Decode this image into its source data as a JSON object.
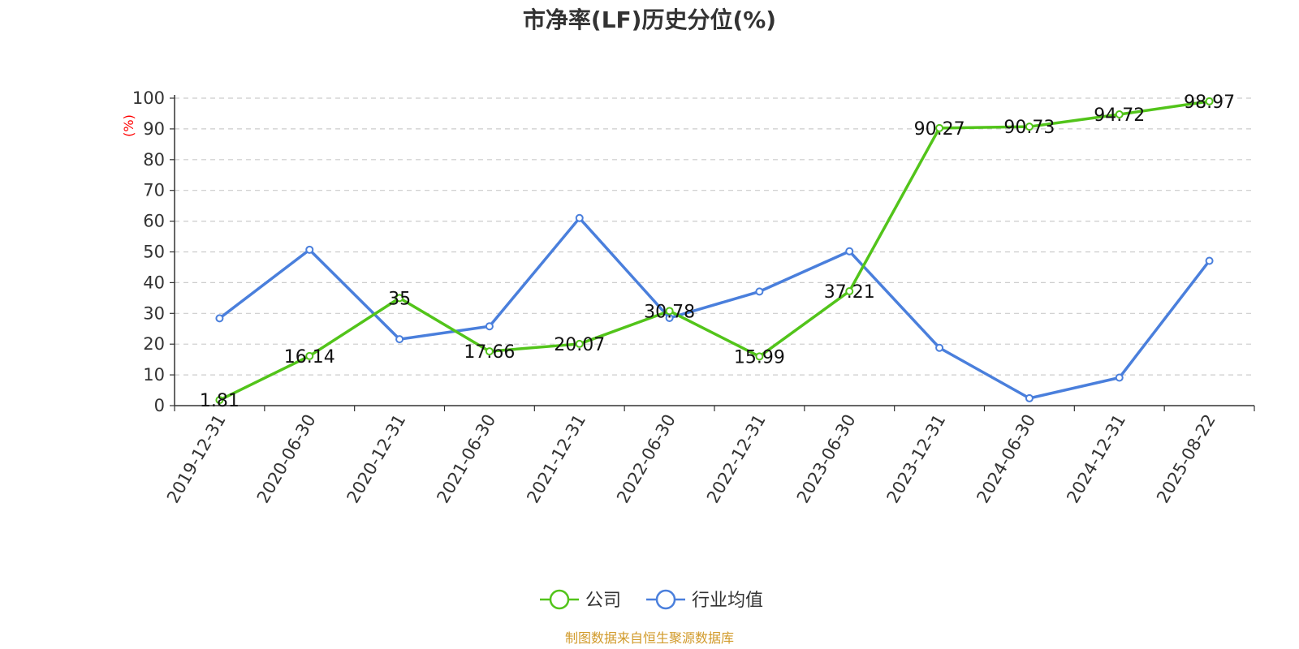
{
  "chart_data": {
    "type": "line",
    "title": "市净率(LF)历史分位(%)",
    "ylabel": "(%)",
    "ylim": [
      0,
      100
    ],
    "yticks": [
      0,
      10,
      20,
      30,
      40,
      50,
      60,
      70,
      80,
      90,
      100
    ],
    "grid": true,
    "legend_position": "bottom-center",
    "categories": [
      "2019-12-31",
      "2020-06-30",
      "2020-12-31",
      "2021-06-30",
      "2021-12-31",
      "2022-06-30",
      "2022-12-31",
      "2023-06-30",
      "2023-12-31",
      "2024-06-30",
      "2024-12-31",
      "2025-08-22"
    ],
    "series": [
      {
        "name": "公司",
        "color": "#52c41a",
        "values": [
          1.81,
          16.14,
          35,
          17.66,
          20.07,
          30.78,
          15.99,
          37.21,
          90.27,
          90.73,
          94.72,
          98.97
        ],
        "labels": [
          "1.81",
          "16.14",
          "35",
          "17.66",
          "20.07",
          "30.78",
          "15.99",
          "37.21",
          "90.27",
          "90.73",
          "94.72",
          "98.97"
        ]
      },
      {
        "name": "行业均值",
        "color": "#4a7fdc",
        "values": [
          28.4,
          50.7,
          21.6,
          25.8,
          61.0,
          28.5,
          37.1,
          50.2,
          18.8,
          2.4,
          9.1,
          47.1
        ]
      }
    ]
  },
  "source": {
    "text": "制图数据来自恒生聚源数据库",
    "color": "#d19a2a"
  },
  "ylabel_color": "#ff0000"
}
